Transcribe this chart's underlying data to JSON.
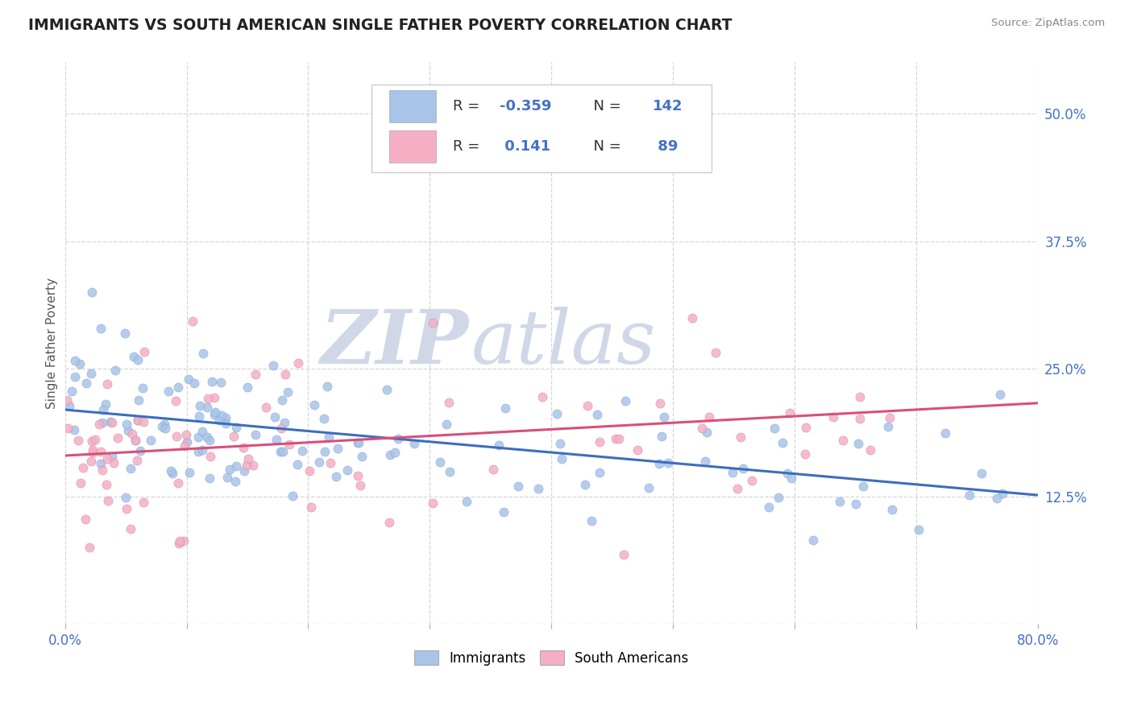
{
  "title": "IMMIGRANTS VS SOUTH AMERICAN SINGLE FATHER POVERTY CORRELATION CHART",
  "source": "Source: ZipAtlas.com",
  "ylabel": "Single Father Poverty",
  "xlim": [
    0.0,
    0.8
  ],
  "ylim": [
    0.0,
    0.55
  ],
  "xtick_positions": [
    0.0,
    0.1,
    0.2,
    0.3,
    0.4,
    0.5,
    0.6,
    0.7,
    0.8
  ],
  "xticklabels": [
    "0.0%",
    "",
    "",
    "",
    "",
    "",
    "",
    "",
    "80.0%"
  ],
  "ytick_positions": [
    0.0,
    0.125,
    0.25,
    0.375,
    0.5
  ],
  "yticklabels": [
    "",
    "12.5%",
    "25.0%",
    "37.5%",
    "50.0%"
  ],
  "blue_color": "#a8c4e8",
  "pink_color": "#f4afc4",
  "blue_line_color": "#3c6dbf",
  "pink_line_color": "#d94f7a",
  "tick_label_color": "#4472c4",
  "legend_text_color": "#4472c4",
  "watermark_text": "ZIPatlas",
  "watermark_color": "#d0d8e8",
  "imm_R": "-0.359",
  "imm_N": "142",
  "sa_R": "0.141",
  "sa_N": "89",
  "seed": 1234
}
